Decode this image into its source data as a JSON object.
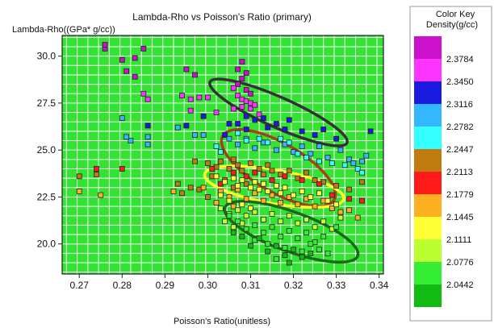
{
  "chart_data": {
    "type": "scatter",
    "title": "Lambda-Rho vs Poisson's Ratio (primary)",
    "xlabel": "Poisson's Ratio(unitless)",
    "ylabel": "Lambda-Rho((GPa* g/cc))",
    "xlim": [
      0.266,
      0.341
    ],
    "ylim": [
      18.4,
      31.1
    ],
    "xticks": [
      "0.27",
      "0.28",
      "0.29",
      "0.30",
      "0.31",
      "0.32",
      "0.33",
      "0.34"
    ],
    "xtick_values": [
      0.27,
      0.28,
      0.29,
      0.3,
      0.31,
      0.32,
      0.33,
      0.34
    ],
    "yticks": [
      "20.0",
      "22.5",
      "25.0",
      "27.5",
      "30.0"
    ],
    "ytick_values": [
      20.0,
      22.5,
      25.0,
      27.5,
      30.0
    ],
    "grid": true,
    "background_color": "#33e233",
    "grid_color": "#f5fff5",
    "legend": {
      "title": "Color Key",
      "subtitle": "Density(g/cc)",
      "placement": "right",
      "labels": [
        "2.3784",
        "2.3450",
        "2.3116",
        "2.2782",
        "2.2447",
        "2.2113",
        "2.1779",
        "2.1445",
        "2.1111",
        "2.0776",
        "2.0442"
      ],
      "colors": [
        "#cc11cc",
        "#ff33ff",
        "#1a1ae0",
        "#33b8ff",
        "#33ffff",
        "#c07a10",
        "#ff1a1a",
        "#ffb020",
        "#ffff33",
        "#bbff33",
        "#33ee33",
        "#11bb11"
      ]
    },
    "ellipses": [
      {
        "name": "magenta-blue",
        "color": "#333333",
        "cx": 0.3165,
        "cy": 27.0,
        "rx": 0.0175,
        "ry": 0.8,
        "angle_deg": 24
      },
      {
        "name": "brown",
        "color": "#a0441a",
        "cx": 0.3165,
        "cy": 24.05,
        "rx": 0.015,
        "ry": 1.3,
        "angle_deg": 30
      },
      {
        "name": "yellow",
        "color": "#ffff22",
        "cx": 0.3155,
        "cy": 23.05,
        "rx": 0.0165,
        "ry": 0.9,
        "angle_deg": 10
      },
      {
        "name": "green",
        "color": "#1a6a1a",
        "cx": 0.3195,
        "cy": 20.65,
        "rx": 0.0165,
        "ry": 1.05,
        "angle_deg": 20
      }
    ],
    "series": [
      {
        "color": "#cc11cc",
        "points": [
          [
            0.276,
            30.4
          ],
          [
            0.276,
            30.6
          ],
          [
            0.28,
            29.8
          ],
          [
            0.283,
            29.9
          ],
          [
            0.285,
            30.4
          ],
          [
            0.281,
            29.2
          ],
          [
            0.283,
            28.9
          ],
          [
            0.295,
            29.3
          ],
          [
            0.297,
            29.0
          ],
          [
            0.307,
            29.3
          ],
          [
            0.308,
            29.7
          ],
          [
            0.309,
            29.1
          ],
          [
            0.308,
            28.8
          ],
          [
            0.307,
            28.5
          ],
          [
            0.309,
            28.2
          ],
          [
            0.31,
            28.0
          ]
        ]
      },
      {
        "color": "#ff33ff",
        "points": [
          [
            0.285,
            28.0
          ],
          [
            0.286,
            27.7
          ],
          [
            0.294,
            27.9
          ],
          [
            0.296,
            27.7
          ],
          [
            0.298,
            27.8
          ],
          [
            0.3,
            27.8
          ],
          [
            0.306,
            28.3
          ],
          [
            0.307,
            27.9
          ],
          [
            0.308,
            27.7
          ],
          [
            0.309,
            27.6
          ],
          [
            0.31,
            27.5
          ],
          [
            0.308,
            27.3
          ],
          [
            0.31,
            27.2
          ],
          [
            0.311,
            27.4
          ],
          [
            0.306,
            27.2
          ],
          [
            0.312,
            26.9
          ],
          [
            0.296,
            27.1
          ],
          [
            0.302,
            27.0
          ]
        ]
      },
      {
        "color": "#1a1ae0",
        "points": [
          [
            0.299,
            26.8
          ],
          [
            0.307,
            26.4
          ],
          [
            0.309,
            26.1
          ],
          [
            0.311,
            26.6
          ],
          [
            0.313,
            26.7
          ],
          [
            0.314,
            26.2
          ],
          [
            0.316,
            26.4
          ],
          [
            0.318,
            26.1
          ],
          [
            0.319,
            26.6
          ],
          [
            0.322,
            26.0
          ],
          [
            0.325,
            25.8
          ],
          [
            0.327,
            26.1
          ],
          [
            0.33,
            25.6
          ],
          [
            0.338,
            26.0
          ],
          [
            0.309,
            26.8
          ],
          [
            0.305,
            26.4
          ],
          [
            0.304,
            25.8
          ],
          [
            0.295,
            26.3
          ],
          [
            0.286,
            26.3
          ]
        ]
      },
      {
        "color": "#33b8ff",
        "points": [
          [
            0.28,
            26.7
          ],
          [
            0.282,
            25.5
          ],
          [
            0.281,
            25.7
          ],
          [
            0.286,
            25.7
          ],
          [
            0.286,
            25.3
          ],
          [
            0.293,
            26.2
          ],
          [
            0.297,
            25.8
          ],
          [
            0.299,
            25.8
          ],
          [
            0.305,
            25.6
          ],
          [
            0.307,
            25.3
          ],
          [
            0.309,
            25.6
          ],
          [
            0.311,
            25.1
          ],
          [
            0.313,
            25.4
          ],
          [
            0.316,
            25.0
          ],
          [
            0.318,
            25.3
          ],
          [
            0.32,
            24.9
          ],
          [
            0.322,
            25.2
          ],
          [
            0.324,
            24.8
          ],
          [
            0.326,
            25.2
          ],
          [
            0.328,
            24.6
          ],
          [
            0.331,
            25.0
          ],
          [
            0.333,
            24.5
          ],
          [
            0.334,
            24.3
          ],
          [
            0.336,
            24.4
          ],
          [
            0.337,
            24.7
          ]
        ]
      },
      {
        "color": "#33ffff",
        "points": [
          [
            0.307,
            25.9
          ],
          [
            0.309,
            25.5
          ],
          [
            0.312,
            25.6
          ],
          [
            0.314,
            25.4
          ],
          [
            0.317,
            25.6
          ],
          [
            0.319,
            25.4
          ],
          [
            0.321,
            24.8
          ],
          [
            0.323,
            24.6
          ],
          [
            0.326,
            24.4
          ],
          [
            0.329,
            24.3
          ],
          [
            0.332,
            24.2
          ],
          [
            0.335,
            24.0
          ],
          [
            0.336,
            23.8
          ],
          [
            0.302,
            25.2
          ],
          [
            0.303,
            24.9
          ]
        ]
      },
      {
        "color": "#c07a10",
        "points": [
          [
            0.297,
            24.4
          ],
          [
            0.3,
            24.3
          ],
          [
            0.302,
            24.1
          ],
          [
            0.303,
            24.4
          ],
          [
            0.305,
            24.0
          ],
          [
            0.306,
            24.5
          ],
          [
            0.307,
            24.2
          ],
          [
            0.308,
            23.9
          ],
          [
            0.31,
            24.3
          ],
          [
            0.312,
            24.0
          ],
          [
            0.313,
            23.7
          ],
          [
            0.314,
            24.2
          ],
          [
            0.315,
            23.9
          ],
          [
            0.317,
            23.7
          ],
          [
            0.319,
            23.9
          ],
          [
            0.321,
            23.5
          ],
          [
            0.323,
            23.8
          ],
          [
            0.325,
            23.4
          ],
          [
            0.327,
            23.3
          ],
          [
            0.33,
            23.1
          ],
          [
            0.333,
            22.9
          ],
          [
            0.336,
            23.3
          ],
          [
            0.301,
            23.6
          ],
          [
            0.304,
            23.4
          ],
          [
            0.306,
            23.0
          ],
          [
            0.309,
            23.2
          ],
          [
            0.293,
            23.2
          ],
          [
            0.296,
            23.0
          ],
          [
            0.294,
            22.7
          ],
          [
            0.298,
            22.9
          ],
          [
            0.27,
            23.6
          ],
          [
            0.274,
            23.7
          ],
          [
            0.3,
            22.5
          ]
        ]
      },
      {
        "color": "#ff1a1a",
        "points": [
          [
            0.274,
            24.0
          ],
          [
            0.28,
            24.0
          ],
          [
            0.301,
            24.0
          ],
          [
            0.306,
            23.8
          ],
          [
            0.309,
            23.6
          ],
          [
            0.311,
            23.8
          ],
          [
            0.315,
            23.4
          ],
          [
            0.318,
            23.6
          ],
          [
            0.322,
            23.4
          ],
          [
            0.326,
            23.2
          ],
          [
            0.329,
            22.6
          ],
          [
            0.333,
            22.4
          ],
          [
            0.336,
            22.3
          ],
          [
            0.303,
            23.2
          ]
        ]
      },
      {
        "color": "#ffb020",
        "points": [
          [
            0.27,
            22.8
          ],
          [
            0.275,
            22.6
          ],
          [
            0.292,
            22.8
          ],
          [
            0.299,
            23.0
          ],
          [
            0.303,
            22.8
          ],
          [
            0.305,
            22.5
          ],
          [
            0.307,
            22.9
          ],
          [
            0.309,
            22.4
          ],
          [
            0.311,
            22.7
          ],
          [
            0.313,
            22.3
          ],
          [
            0.315,
            22.6
          ],
          [
            0.317,
            22.2
          ],
          [
            0.319,
            22.5
          ],
          [
            0.321,
            22.1
          ],
          [
            0.323,
            22.4
          ],
          [
            0.325,
            22.0
          ],
          [
            0.327,
            22.3
          ],
          [
            0.329,
            21.9
          ],
          [
            0.331,
            21.7
          ],
          [
            0.333,
            21.8
          ],
          [
            0.335,
            21.4
          ],
          [
            0.302,
            22.2
          ],
          [
            0.306,
            22.0
          ]
        ]
      },
      {
        "color": "#ffff33",
        "points": [
          [
            0.302,
            23.6
          ],
          [
            0.304,
            23.3
          ],
          [
            0.306,
            23.5
          ],
          [
            0.307,
            23.1
          ],
          [
            0.308,
            23.4
          ],
          [
            0.31,
            23.0
          ],
          [
            0.311,
            23.3
          ],
          [
            0.312,
            22.9
          ],
          [
            0.313,
            23.2
          ],
          [
            0.314,
            22.8
          ],
          [
            0.316,
            23.1
          ],
          [
            0.317,
            22.7
          ],
          [
            0.318,
            23.0
          ],
          [
            0.32,
            22.6
          ],
          [
            0.322,
            22.8
          ],
          [
            0.324,
            22.5
          ],
          [
            0.326,
            22.7
          ],
          [
            0.328,
            22.3
          ],
          [
            0.33,
            22.1
          ],
          [
            0.303,
            22.6
          ],
          [
            0.305,
            22.3
          ],
          [
            0.308,
            22.1
          ],
          [
            0.31,
            21.9
          ]
        ]
      },
      {
        "color": "#bbff33",
        "points": [
          [
            0.303,
            21.9
          ],
          [
            0.305,
            21.6
          ],
          [
            0.307,
            21.8
          ],
          [
            0.309,
            21.5
          ],
          [
            0.311,
            21.7
          ],
          [
            0.313,
            21.3
          ],
          [
            0.315,
            21.6
          ],
          [
            0.317,
            21.2
          ],
          [
            0.319,
            21.5
          ],
          [
            0.321,
            21.1
          ],
          [
            0.323,
            21.3
          ],
          [
            0.325,
            20.9
          ],
          [
            0.327,
            21.2
          ],
          [
            0.329,
            20.8
          ],
          [
            0.331,
            21.4
          ],
          [
            0.304,
            21.2
          ],
          [
            0.306,
            20.9
          ],
          [
            0.308,
            21.1
          ]
        ]
      },
      {
        "color": "#33ee33",
        "points": [
          [
            0.305,
            21.5
          ],
          [
            0.307,
            21.2
          ],
          [
            0.309,
            20.8
          ],
          [
            0.311,
            21.0
          ],
          [
            0.313,
            20.6
          ],
          [
            0.315,
            20.9
          ],
          [
            0.317,
            20.4
          ],
          [
            0.319,
            20.7
          ],
          [
            0.321,
            20.3
          ],
          [
            0.323,
            20.6
          ],
          [
            0.325,
            20.1
          ],
          [
            0.327,
            20.4
          ],
          [
            0.311,
            20.2
          ],
          [
            0.314,
            20.0
          ],
          [
            0.318,
            19.8
          ],
          [
            0.322,
            19.6
          ],
          [
            0.316,
            19.2
          ],
          [
            0.324,
            20.0
          ],
          [
            0.326,
            19.7
          ],
          [
            0.328,
            19.5
          ],
          [
            0.33,
            20.9
          ]
        ]
      },
      {
        "color": "#11bb11",
        "points": [
          [
            0.306,
            20.6
          ],
          [
            0.308,
            20.4
          ],
          [
            0.31,
            19.9
          ],
          [
            0.312,
            20.3
          ],
          [
            0.314,
            19.6
          ],
          [
            0.316,
            19.9
          ],
          [
            0.318,
            19.4
          ],
          [
            0.32,
            19.7
          ],
          [
            0.322,
            19.3
          ],
          [
            0.324,
            19.5
          ],
          [
            0.319,
            19.0
          ]
        ]
      }
    ]
  }
}
